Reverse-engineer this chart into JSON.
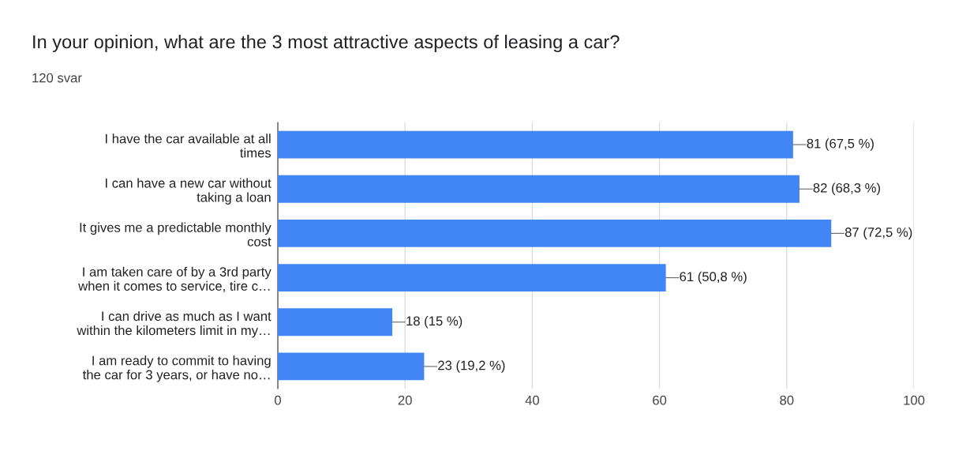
{
  "chart_data": {
    "type": "bar",
    "orientation": "horizontal",
    "title": "In your opinion, what are the 3 most attractive aspects of leasing a car?",
    "subtitle": "120 svar",
    "categories": [
      "I have the car available at all\ntimes",
      "I can have a new car without\ntaking a loan",
      "It gives me a predictable monthly\ncost",
      "I am taken care of by a 3rd party\nwhen it comes to service, tire c…",
      "I can drive as much as I want\nwithin the kilometers limit in my…",
      "I am ready to commit to having\nthe car for 3 years, or have no…"
    ],
    "values": [
      81,
      82,
      87,
      61,
      18,
      23
    ],
    "value_labels": [
      "81 (67,5 %)",
      "82 (68,3 %)",
      "87 (72,5 %)",
      "61 (50,8 %)",
      "18 (15 %)",
      "23 (19,2 %)"
    ],
    "color": "#4285f4",
    "xlim": [
      0,
      100
    ],
    "xticks": [
      0,
      20,
      40,
      60,
      80,
      100
    ],
    "grid": "x",
    "legend": false
  }
}
